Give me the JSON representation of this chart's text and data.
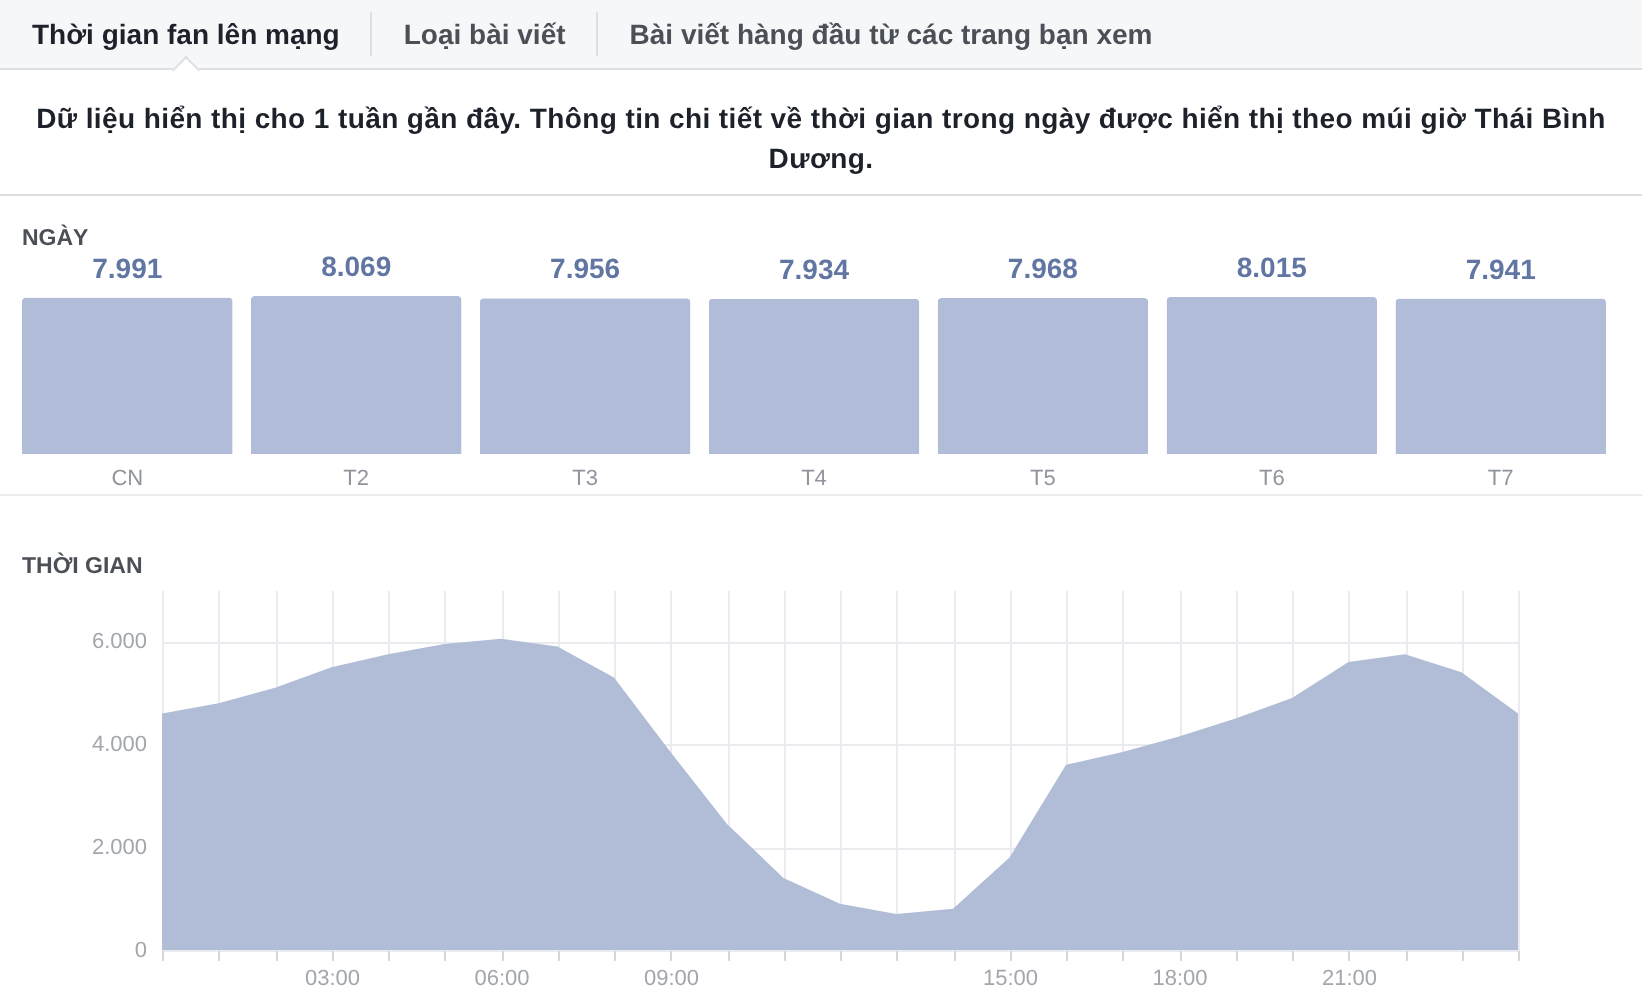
{
  "chart_data": [
    {
      "type": "other",
      "title": "Dữ liệu hiển thị cho 1 tuần gần đây. Thông tin chi tiết về thời gian trong ngày được hiển thị theo múi giờ Thái Bình Dương.",
      "annotations": [
        "Thời gian fan lên mạng",
        "Loại bài viết",
        "Bài viết hàng đầu từ các trang bạn xem"
      ]
    },
    {
      "type": "bar",
      "title": "NGÀY",
      "categories": [
        "CN",
        "T2",
        "T3",
        "T4",
        "T5",
        "T6",
        "T7"
      ],
      "values": [
        7991,
        8069,
        7956,
        7934,
        7968,
        8015,
        7941
      ],
      "value_labels": [
        "7.991",
        "8.069",
        "7.956",
        "7.934",
        "7.968",
        "8.015",
        "7.941"
      ],
      "color": "#b0bcd8"
    },
    {
      "type": "area",
      "title": "THỜI GIAN",
      "x": [
        0,
        1,
        2,
        3,
        4,
        5,
        6,
        7,
        8,
        9,
        10,
        11,
        12,
        13,
        14,
        15,
        16,
        17,
        18,
        19,
        20,
        21,
        22,
        23,
        24
      ],
      "values": [
        4600,
        4800,
        5100,
        5500,
        5750,
        5950,
        6050,
        5900,
        5300,
        3850,
        2450,
        1400,
        900,
        700,
        800,
        1800,
        3600,
        3850,
        4150,
        4500,
        4900,
        5600,
        5750,
        5400,
        4600
      ],
      "color": "#b1bcd7",
      "xlim": [
        0,
        24
      ],
      "xticks": [
        {
          "value": 0,
          "label": null
        },
        {
          "value": 1,
          "label": null
        },
        {
          "value": 2,
          "label": null
        },
        {
          "value": 3,
          "label": "03:00"
        },
        {
          "value": 4,
          "label": null
        },
        {
          "value": 5,
          "label": null
        },
        {
          "value": 6,
          "label": "06:00"
        },
        {
          "value": 7,
          "label": null
        },
        {
          "value": 8,
          "label": null
        },
        {
          "value": 9,
          "label": "09:00"
        },
        {
          "value": 10,
          "label": null
        },
        {
          "value": 11,
          "label": null
        },
        {
          "value": 12,
          "label": null
        },
        {
          "value": 13,
          "label": null
        },
        {
          "value": 14,
          "label": null
        },
        {
          "value": 15,
          "label": "15:00"
        },
        {
          "value": 16,
          "label": null
        },
        {
          "value": 17,
          "label": null
        },
        {
          "value": 18,
          "label": "18:00"
        },
        {
          "value": 19,
          "label": null
        },
        {
          "value": 20,
          "label": null
        },
        {
          "value": 21,
          "label": "21:00"
        },
        {
          "value": 22,
          "label": null
        },
        {
          "value": 23,
          "label": null
        },
        {
          "value": 24,
          "label": null
        }
      ],
      "ylim": [
        0,
        7000
      ],
      "yticks": [
        0,
        {
          "value": 2000,
          "label": "2.000"
        },
        {
          "value": 4000,
          "label": "4.000"
        },
        {
          "value": 6000,
          "label": "6.000"
        }
      ],
      "grid": true
    }
  ]
}
